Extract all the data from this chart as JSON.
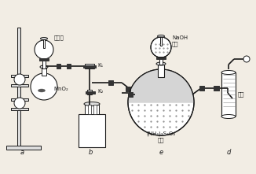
{
  "bg_color": "#f2ede4",
  "line_color": "#1a1a1a",
  "fill_dark": "#333333",
  "fill_gray": "#aaaaaa",
  "fill_light": "#dddddd",
  "fill_white": "#ffffff",
  "labels": {
    "shuangyang": "双氧水",
    "mno2": "MnO₂",
    "k1": "K₁",
    "k2": "K₂",
    "naoh": "NaOH\n溶液",
    "nh4s2o8": "(NH₄)₂S₂O₈\n溶液",
    "liusuan": "硫酸",
    "a": "a",
    "b": "b",
    "c": "e",
    "d": "d"
  },
  "figsize": [
    3.26,
    2.21
  ],
  "dpi": 100
}
